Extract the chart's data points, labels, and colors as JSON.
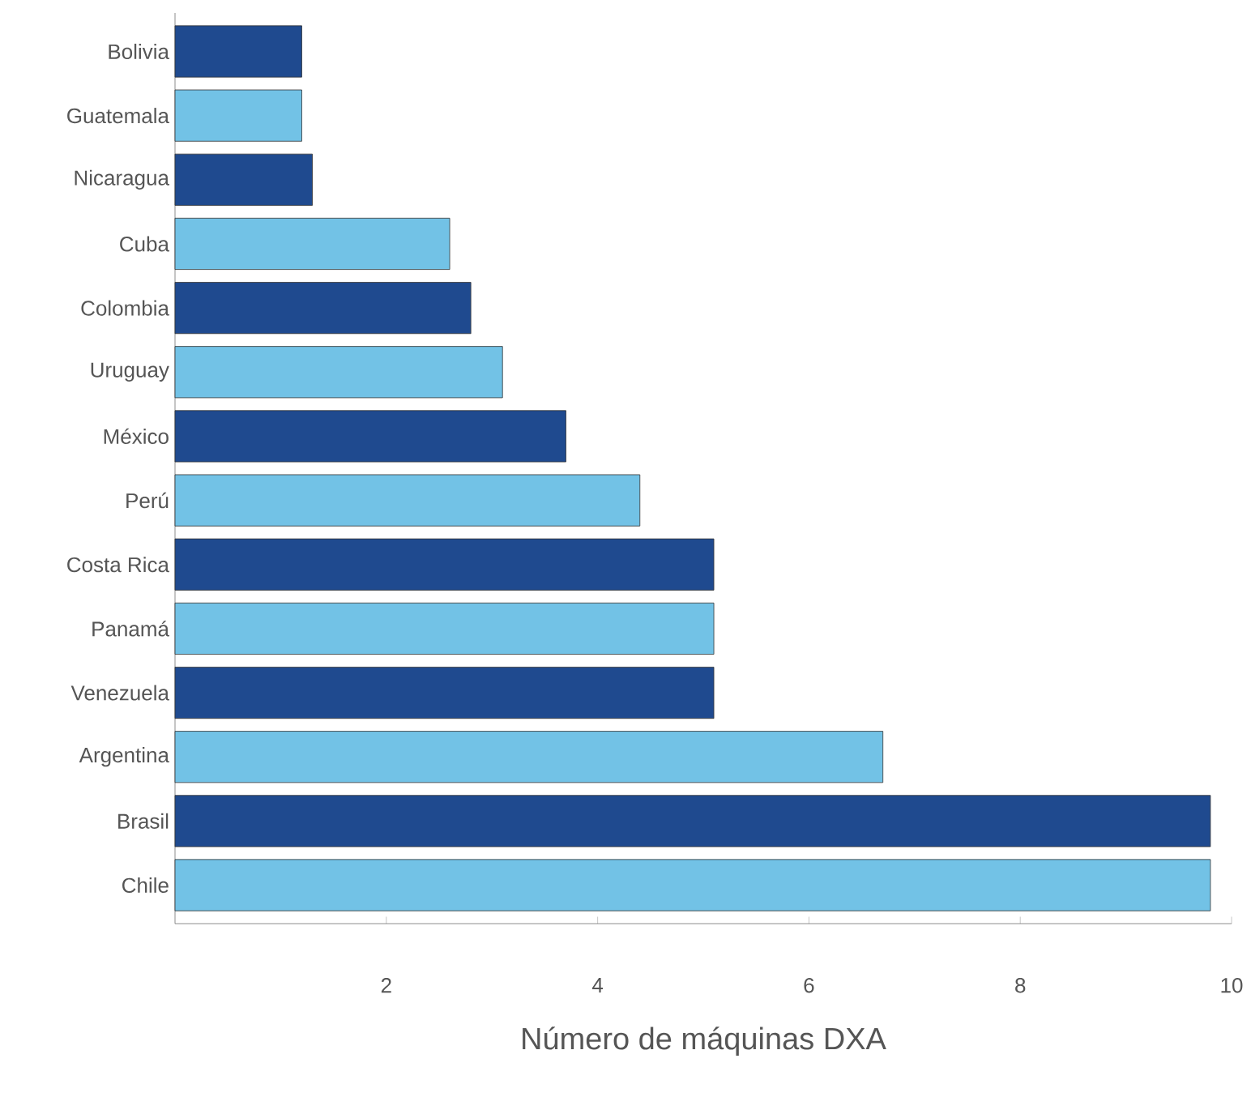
{
  "chart_data": {
    "type": "bar",
    "orientation": "horizontal",
    "xlabel": "Número de máquinas DXA",
    "categories": [
      "Bolivia",
      "Guatemala",
      "Nicaragua",
      "Cuba",
      "Colombia",
      "Uruguay",
      "México",
      "Perú",
      "Costa Rica",
      "Panamá",
      "Venezuela",
      "Argentina",
      "Brasil",
      "Chile"
    ],
    "values": [
      1.2,
      1.2,
      1.3,
      2.6,
      2.8,
      3.1,
      3.7,
      4.4,
      5.1,
      5.1,
      5.1,
      6.7,
      9.8,
      9.8
    ],
    "colors": [
      "#1f4a8f",
      "#72c2e6",
      "#1f4a8f",
      "#72c2e6",
      "#1f4a8f",
      "#72c2e6",
      "#1f4a8f",
      "#72c2e6",
      "#1f4a8f",
      "#72c2e6",
      "#1f4a8f",
      "#72c2e6",
      "#1f4a8f",
      "#72c2e6"
    ],
    "xlim": [
      0,
      10
    ],
    "xticks": [
      2,
      4,
      6,
      8,
      10
    ],
    "grid": false
  }
}
